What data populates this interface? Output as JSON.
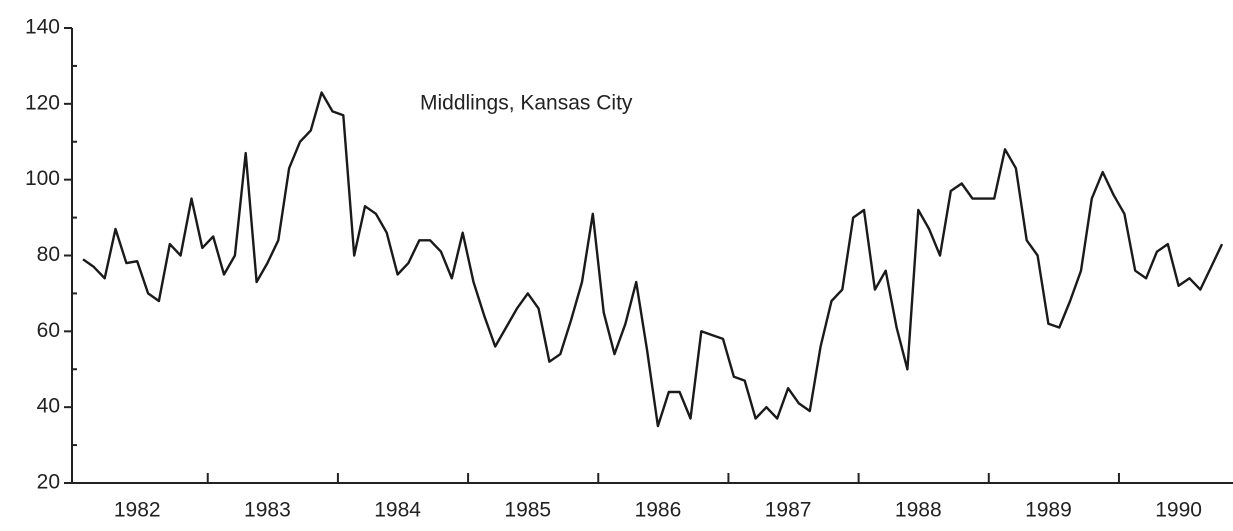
{
  "chart_data": {
    "type": "line",
    "title": "Middlings, Kansas City",
    "categories": [
      null,
      null,
      null,
      null,
      null,
      "1982",
      null,
      null,
      null,
      null,
      null,
      null,
      null,
      null,
      null,
      null,
      null,
      "1983",
      null,
      null,
      null,
      null,
      null,
      null,
      null,
      null,
      null,
      null,
      null,
      "1984",
      null,
      null,
      null,
      null,
      null,
      null,
      null,
      null,
      null,
      null,
      null,
      "1985",
      null,
      null,
      null,
      null,
      null,
      null,
      null,
      null,
      null,
      null,
      null,
      "1986",
      null,
      null,
      null,
      null,
      null,
      null,
      null,
      null,
      null,
      null,
      null,
      "1987",
      null,
      null,
      null,
      null,
      null,
      null,
      null,
      null,
      null,
      null,
      null,
      "1988",
      null,
      null,
      null,
      null,
      null,
      null,
      null,
      null,
      null,
      null,
      null,
      "1989",
      null,
      null,
      null,
      null,
      null,
      null,
      null,
      null,
      null,
      null,
      null,
      "1990",
      null,
      null,
      null,
      null
    ],
    "values": [
      79,
      77,
      74,
      87,
      78,
      78.5,
      70,
      68,
      83,
      80,
      95,
      82,
      85,
      75,
      80,
      107,
      73,
      78,
      84,
      103,
      110,
      113,
      123,
      118,
      117,
      80,
      93,
      91,
      86,
      75,
      78,
      84,
      84,
      81,
      74,
      86,
      73,
      64,
      56,
      61,
      66,
      70,
      66,
      52,
      54,
      63,
      73,
      91,
      65,
      54,
      62,
      73,
      55,
      35,
      44,
      44,
      37,
      60,
      59,
      58,
      48,
      47,
      37,
      40,
      37,
      45,
      41,
      39,
      56,
      68,
      71,
      90,
      92,
      71,
      76,
      61,
      50,
      92,
      87,
      80,
      97,
      99,
      95,
      95,
      95,
      108,
      103,
      84,
      80,
      62,
      61,
      68,
      76,
      95,
      102,
      96,
      91,
      76,
      74,
      81,
      83,
      72,
      74,
      71,
      77,
      83
    ],
    "color": "#1a1a1a",
    "ylim": [
      20,
      140
    ],
    "yticks": [
      20,
      40,
      60,
      80,
      100,
      120,
      140
    ],
    "grid": false
  }
}
